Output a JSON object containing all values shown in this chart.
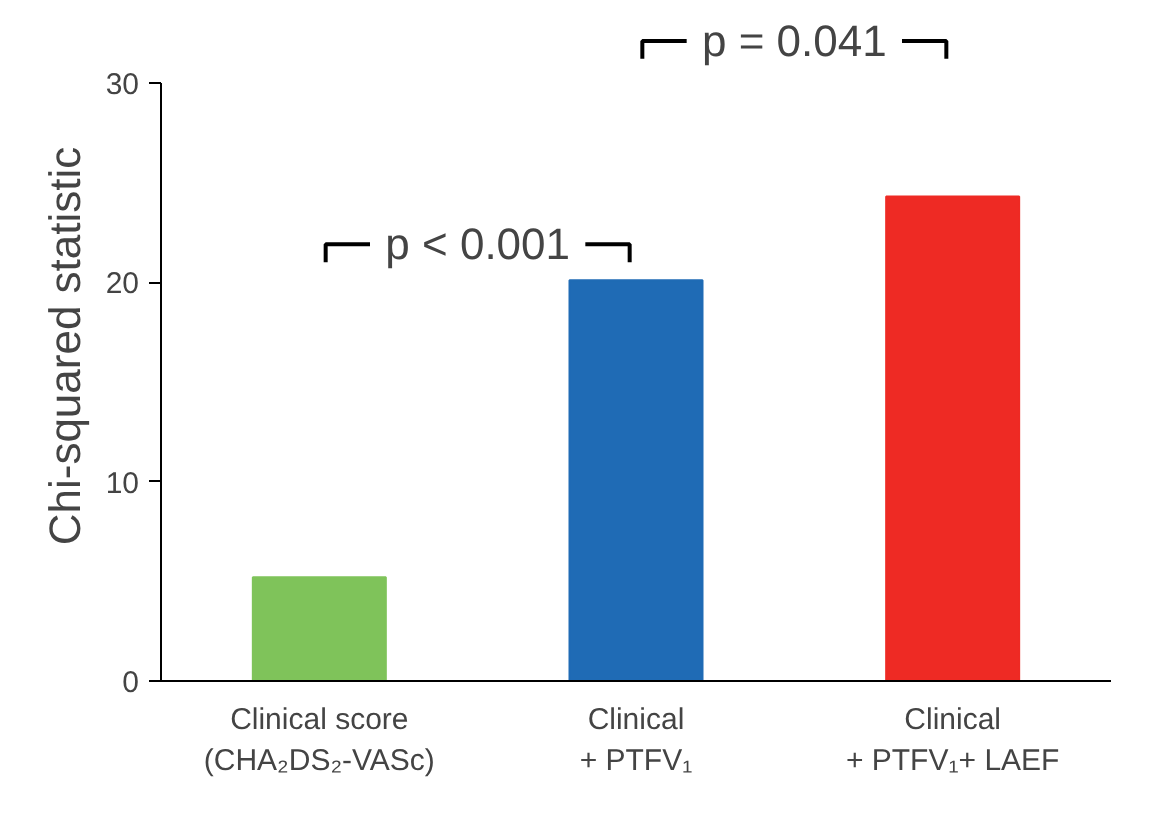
{
  "chart_data": {
    "type": "bar",
    "ylabel": "Chi-squared statistic",
    "categories": [
      "Clinical score\n(CHA₂DS₂-VASc)",
      "Clinical\n+ PTFV₁",
      "Clinical\n+ PTFV₁+ LAEF"
    ],
    "values": [
      5.2,
      20.1,
      24.3
    ],
    "colors": [
      "#7fc35a",
      "#1f6bb5",
      "#ee2a24"
    ],
    "ylim": [
      0,
      30
    ],
    "yticks": [
      0,
      10,
      20,
      30
    ],
    "grid": false,
    "annotations": [
      "p < 0.001",
      "p = 0.041"
    ]
  }
}
